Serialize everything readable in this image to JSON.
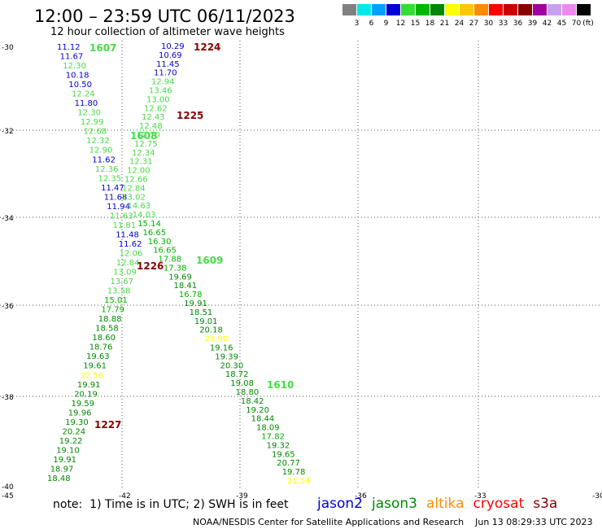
{
  "title": "12:00 – 23:59 UTC 06/11/2023",
  "subtitle": "12 hour collection of altimeter wave heights",
  "scale": {
    "unit": "(ft)",
    "bins": [
      {
        "label": "3",
        "color": "#808080"
      },
      {
        "label": "6",
        "color": "#00e8e8"
      },
      {
        "label": "9",
        "color": "#00a0ff"
      },
      {
        "label": "12",
        "color": "#0000d8"
      },
      {
        "label": "15",
        "color": "#33dd33"
      },
      {
        "label": "18",
        "color": "#00b800"
      },
      {
        "label": "21",
        "color": "#008800"
      },
      {
        "label": "24",
        "color": "#ffff00"
      },
      {
        "label": "27",
        "color": "#ffc800"
      },
      {
        "label": "30",
        "color": "#ff8c00"
      },
      {
        "label": "33",
        "color": "#ff0000"
      },
      {
        "label": "36",
        "color": "#cc0000"
      },
      {
        "label": "39",
        "color": "#880000"
      },
      {
        "label": "42",
        "color": "#a000a0"
      },
      {
        "label": "45",
        "color": "#c8a0f0"
      },
      {
        "label": "70",
        "color": "#ee88ee"
      },
      {
        "label": "",
        "color": "#000000"
      }
    ]
  },
  "lat_labels": [
    "-30",
    "-32",
    "-34",
    "-36",
    "-38",
    "-40",
    "-45"
  ],
  "lon_labels": [
    "-42",
    "-39",
    "-36",
    "-33",
    "-30"
  ],
  "passes": [
    {
      "points": [
        [
          "11.12",
          "b"
        ],
        [
          "11.67",
          "b"
        ],
        [
          "12.30",
          "g"
        ],
        [
          "10.18",
          "b"
        ],
        [
          "10.50",
          "b"
        ],
        [
          "12.24",
          "g"
        ],
        [
          "11.80",
          "b"
        ],
        [
          "12.30",
          "g"
        ],
        [
          "12.99",
          "g"
        ],
        [
          "12.68",
          "g"
        ],
        [
          "12.32",
          "g"
        ],
        [
          "12.90",
          "g"
        ],
        [
          "11.62",
          "b"
        ],
        [
          "12.36",
          "g"
        ],
        [
          "12.35",
          "g"
        ],
        [
          "11.47",
          "b"
        ],
        [
          "11.68",
          "b"
        ],
        [
          "11.94",
          "b"
        ],
        [
          "11.63",
          "g"
        ],
        [
          "11.81",
          "g"
        ],
        [
          "11.48",
          "b"
        ],
        [
          "11.62",
          "b"
        ],
        [
          "12.06",
          "g"
        ],
        [
          "12.84",
          "g"
        ],
        [
          "13.09",
          "g"
        ],
        [
          "13.67",
          "g"
        ],
        [
          "13.58",
          "g"
        ],
        [
          "15.01",
          "m"
        ],
        [
          "17.79",
          "m"
        ],
        [
          "18.88",
          "d"
        ],
        [
          "18.58",
          "d"
        ],
        [
          "18.60",
          "d"
        ],
        [
          "18.76",
          "d"
        ],
        [
          "19.63",
          "d"
        ],
        [
          "19.61",
          "d"
        ],
        [
          "22.56",
          "y"
        ],
        [
          "19.91",
          "d"
        ],
        [
          "20.19",
          "d"
        ],
        [
          "19.59",
          "d"
        ],
        [
          "19.96",
          "d"
        ],
        [
          "19.30",
          "d"
        ],
        [
          "20.24",
          "d"
        ],
        [
          "19.22",
          "d"
        ],
        [
          "19.10",
          "d"
        ],
        [
          "19.91",
          "d"
        ],
        [
          "18.97",
          "d"
        ],
        [
          "18.48",
          "d"
        ]
      ],
      "times": [
        {
          "label": "1607",
          "color": "g"
        },
        {
          "label": "1608",
          "color": "g"
        },
        {
          "label": "1226",
          "color": "r"
        },
        {
          "label": "1227",
          "color": "r"
        }
      ]
    },
    {
      "points": [
        [
          "10.29",
          "b"
        ],
        [
          "10.69",
          "b"
        ],
        [
          "11.45",
          "b"
        ],
        [
          "11.70",
          "b"
        ],
        [
          "12.94",
          "g"
        ],
        [
          "13.46",
          "g"
        ],
        [
          "13.00",
          "g"
        ],
        [
          "12.62",
          "g"
        ],
        [
          "12.43",
          "g"
        ],
        [
          "12.48",
          "g"
        ],
        [
          "12.70",
          "g"
        ],
        [
          "12.75",
          "g"
        ],
        [
          "12.34",
          "g"
        ],
        [
          "12.31",
          "g"
        ],
        [
          "12.00",
          "g"
        ],
        [
          "12.66",
          "g"
        ],
        [
          "12.84",
          "g"
        ],
        [
          "13.02",
          "g"
        ],
        [
          "14.63",
          "g"
        ],
        [
          "14.03",
          "g"
        ],
        [
          "15.14",
          "m"
        ],
        [
          "16.65",
          "m"
        ],
        [
          "16.30",
          "m"
        ],
        [
          "16.65",
          "m"
        ],
        [
          "17.88",
          "m"
        ],
        [
          "17.38",
          "m"
        ],
        [
          "19.69",
          "d"
        ],
        [
          "18.41",
          "d"
        ],
        [
          "16.78",
          "m"
        ],
        [
          "19.91",
          "d"
        ],
        [
          "18.51",
          "d"
        ],
        [
          "19.01",
          "d"
        ],
        [
          "20.18",
          "d"
        ],
        [
          "21.90",
          "y"
        ],
        [
          "19.16",
          "d"
        ],
        [
          "19.39",
          "d"
        ],
        [
          "20.30",
          "d"
        ],
        [
          "18.72",
          "d"
        ],
        [
          "19.08",
          "d"
        ],
        [
          "18.80",
          "d"
        ],
        [
          "18.42",
          "d"
        ],
        [
          "19.20",
          "d"
        ],
        [
          "18.44",
          "d"
        ],
        [
          "18.09",
          "d"
        ],
        [
          "17.82",
          "m"
        ],
        [
          "19.32",
          "d"
        ],
        [
          "19.65",
          "d"
        ],
        [
          "20.77",
          "d"
        ],
        [
          "19.78",
          "d"
        ],
        [
          "21.54",
          "y"
        ]
      ],
      "times": [
        {
          "label": "1224",
          "color": "r"
        },
        {
          "label": "1225",
          "color": "r"
        },
        {
          "label": "1609",
          "color": "g"
        },
        {
          "label": "1610",
          "color": "g"
        }
      ]
    }
  ],
  "note": "note:  1) Time is in UTC; 2) SWH is in feet",
  "legend": [
    {
      "label": "jason2",
      "color": "#0000d8"
    },
    {
      "label": "jason3",
      "color": "#008800"
    },
    {
      "label": "altika",
      "color": "#ff8c00"
    },
    {
      "label": "cryosat",
      "color": "#ff0000"
    },
    {
      "label": "s3a",
      "color": "#880000"
    }
  ],
  "footer": "NOAA/NESDIS Center for Satellite Applications and Research    Jun 13 08:29:33 UTC 2023"
}
